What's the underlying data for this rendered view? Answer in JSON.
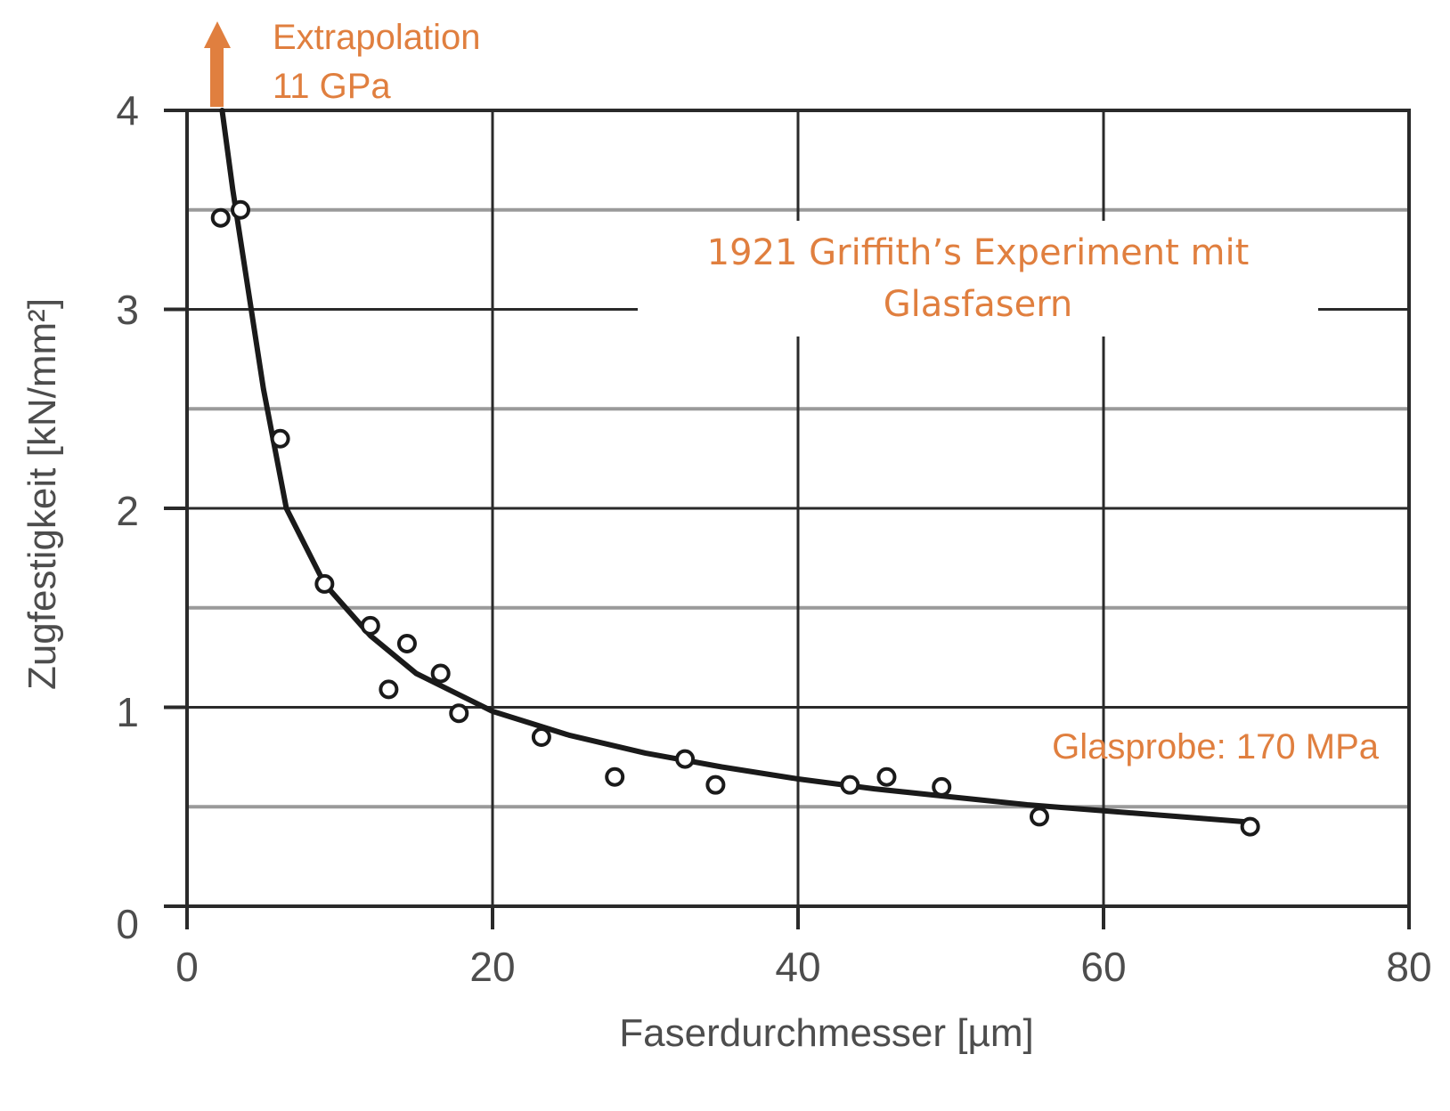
{
  "chart_data": {
    "type": "scatter",
    "xlabel": "Faserdurchmesser [µm]",
    "ylabel": "Zugfestigkeit [kN/mm²]",
    "xlim": [
      0,
      80
    ],
    "ylim": [
      0,
      4
    ],
    "x_ticks": [
      "0",
      "20",
      "40",
      "60",
      "80"
    ],
    "y_ticks": [
      "0",
      "1",
      "2",
      "3",
      "4"
    ],
    "grid": true,
    "points": [
      {
        "x": 2.2,
        "y": 3.46
      },
      {
        "x": 3.5,
        "y": 3.5
      },
      {
        "x": 6.1,
        "y": 2.35
      },
      {
        "x": 9.0,
        "y": 1.62
      },
      {
        "x": 12.0,
        "y": 1.41
      },
      {
        "x": 13.2,
        "y": 1.09
      },
      {
        "x": 14.4,
        "y": 1.32
      },
      {
        "x": 16.6,
        "y": 1.17
      },
      {
        "x": 17.8,
        "y": 0.97
      },
      {
        "x": 23.2,
        "y": 0.85
      },
      {
        "x": 28.0,
        "y": 0.65
      },
      {
        "x": 32.6,
        "y": 0.74
      },
      {
        "x": 34.6,
        "y": 0.61
      },
      {
        "x": 43.4,
        "y": 0.61
      },
      {
        "x": 45.8,
        "y": 0.65
      },
      {
        "x": 49.4,
        "y": 0.6
      },
      {
        "x": 55.8,
        "y": 0.45
      },
      {
        "x": 69.6,
        "y": 0.4
      }
    ],
    "fit_curve": [
      {
        "x": 2.3,
        "y": 4.0
      },
      {
        "x": 3.0,
        "y": 3.6
      },
      {
        "x": 4.0,
        "y": 3.1
      },
      {
        "x": 5.0,
        "y": 2.6
      },
      {
        "x": 6.5,
        "y": 2.0
      },
      {
        "x": 9.0,
        "y": 1.62
      },
      {
        "x": 12.0,
        "y": 1.36
      },
      {
        "x": 15.0,
        "y": 1.17
      },
      {
        "x": 20.0,
        "y": 0.98
      },
      {
        "x": 25.0,
        "y": 0.86
      },
      {
        "x": 30.0,
        "y": 0.77
      },
      {
        "x": 35.0,
        "y": 0.7
      },
      {
        "x": 40.0,
        "y": 0.64
      },
      {
        "x": 45.0,
        "y": 0.59
      },
      {
        "x": 50.0,
        "y": 0.55
      },
      {
        "x": 55.0,
        "y": 0.51
      },
      {
        "x": 60.0,
        "y": 0.48
      },
      {
        "x": 65.0,
        "y": 0.45
      },
      {
        "x": 70.0,
        "y": 0.42
      }
    ],
    "annotations": {
      "extrapolation_line1": "Extrapolation",
      "extrapolation_line2": "11 GPa",
      "title_line1": "1921 Griffith’s Experiment mit",
      "title_line2": "Glasfasern",
      "glass_sample": "Glasprobe: 170 MPa"
    },
    "colors": {
      "annotation": "#e07f3f",
      "curve": "#1a1a1a"
    }
  }
}
